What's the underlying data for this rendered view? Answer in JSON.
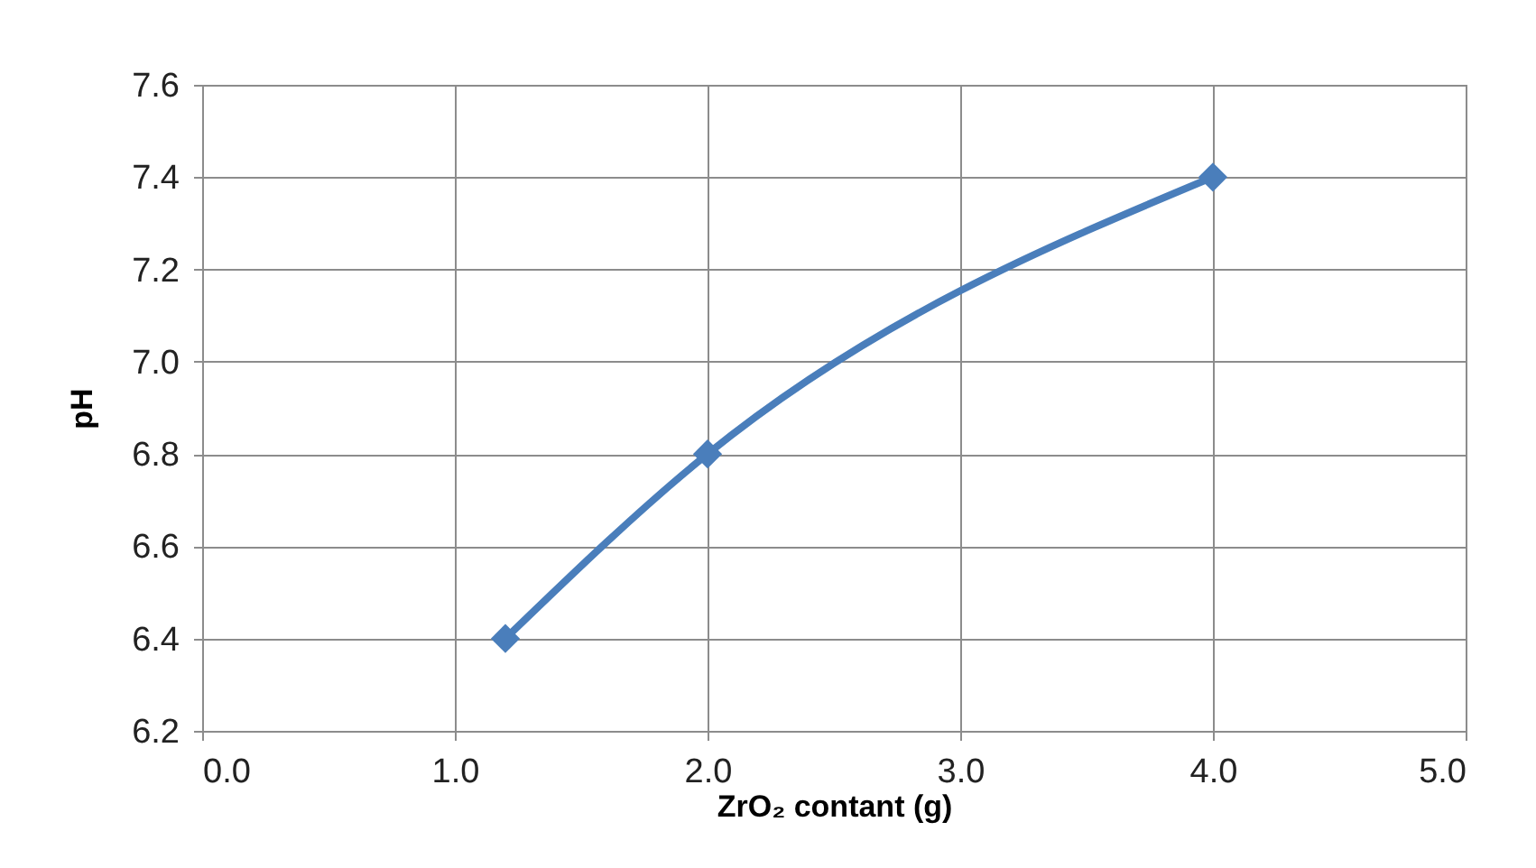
{
  "chart_data": {
    "type": "line",
    "xlabel": "ZrO₂ contant (g)",
    "ylabel": "pH",
    "x": [
      1.2,
      2.0,
      4.0
    ],
    "series": [
      {
        "color": "#4a7ebb",
        "values": [
          6.4,
          6.8,
          7.4
        ]
      }
    ],
    "xlim": [
      0.0,
      5.0
    ],
    "xticks": [
      {
        "value": 0,
        "label": "0.0"
      },
      {
        "value": 1,
        "label": "1.0"
      },
      {
        "value": 2,
        "label": "2.0"
      },
      {
        "value": 3,
        "label": "3.0"
      },
      {
        "value": 4,
        "label": "4.0"
      },
      {
        "value": 5,
        "label": "5.0"
      }
    ],
    "ylim": [
      6.2,
      7.6
    ],
    "yticks": [
      6.2,
      6.4,
      6.6,
      6.8,
      {
        "value": 7,
        "label": "7.0"
      },
      7.2,
      7.4,
      7.6
    ],
    "grid": true,
    "marker": "diamond",
    "line_style": "solid"
  }
}
